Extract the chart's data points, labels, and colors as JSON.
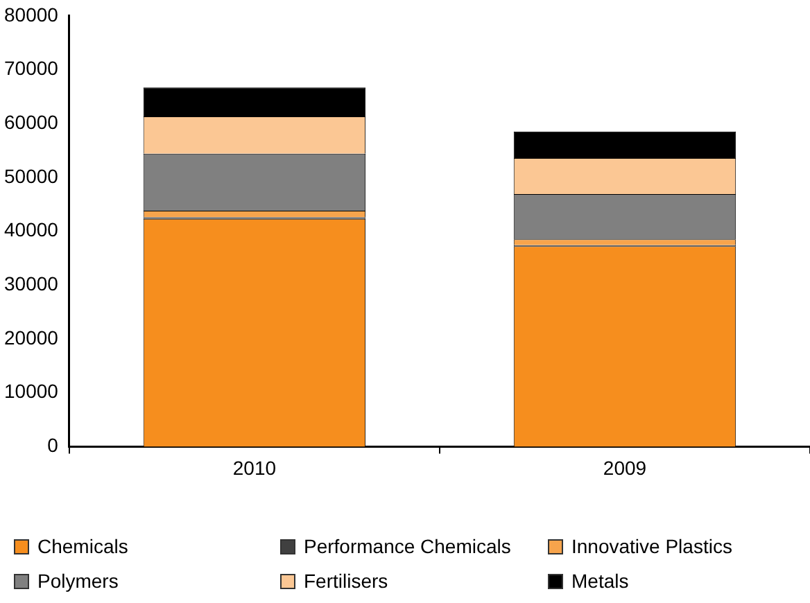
{
  "chart_data": {
    "type": "bar",
    "stacked": true,
    "categories": [
      "2010",
      "2009"
    ],
    "series": [
      {
        "name": "Chemicals",
        "color": "#f68e1e",
        "values": [
          42300,
          37200
        ]
      },
      {
        "name": "Performance Chemicals",
        "color": "#404040",
        "values": [
          300,
          200
        ]
      },
      {
        "name": "Innovative Plastics",
        "color": "#f7a44c",
        "values": [
          1200,
          1100
        ]
      },
      {
        "name": "Polymers",
        "color": "#808080",
        "values": [
          10600,
          8400
        ]
      },
      {
        "name": "Fertilisers",
        "color": "#fbc794",
        "values": [
          6900,
          6700
        ]
      },
      {
        "name": "Metals",
        "color": "#000000",
        "values": [
          5400,
          4900
        ]
      }
    ],
    "ylim": [
      0,
      80000
    ],
    "yticks": [
      0,
      10000,
      20000,
      30000,
      40000,
      50000,
      60000,
      70000,
      80000
    ],
    "grid": false,
    "legend": "bottom"
  }
}
